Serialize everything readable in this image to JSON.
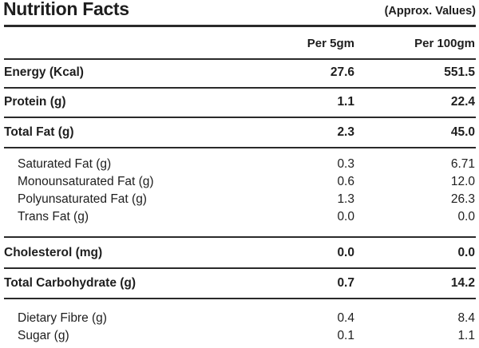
{
  "header": {
    "title": "Nutrition Facts",
    "note": "(Approx. Values)"
  },
  "columns": {
    "per_small": "Per 5gm",
    "per_large": "Per 100gm"
  },
  "rows": [
    {
      "label": "Energy (Kcal)",
      "per_small": "27.6",
      "per_large": "551.5"
    },
    {
      "label": "Protein (g)",
      "per_small": "1.1",
      "per_large": "22.4"
    },
    {
      "label": "Total Fat (g)",
      "per_small": "2.3",
      "per_large": "45.0"
    },
    {
      "label": "Saturated Fat (g)",
      "per_small": "0.3",
      "per_large": "6.71"
    },
    {
      "label": "Monounsaturated Fat (g)",
      "per_small": "0.6",
      "per_large": "12.0"
    },
    {
      "label": "Polyunsaturated Fat (g)",
      "per_small": "1.3",
      "per_large": "26.3"
    },
    {
      "label": "Trans Fat (g)",
      "per_small": "0.0",
      "per_large": "0.0"
    },
    {
      "label": "Cholesterol (mg)",
      "per_small": "0.0",
      "per_large": "0.0"
    },
    {
      "label": "Total Carbohydrate (g)",
      "per_small": "0.7",
      "per_large": "14.2"
    },
    {
      "label": "Dietary Fibre (g)",
      "per_small": "0.4",
      "per_large": "8.4"
    },
    {
      "label": "Sugar (g)",
      "per_small": "0.1",
      "per_large": "1.1"
    }
  ]
}
